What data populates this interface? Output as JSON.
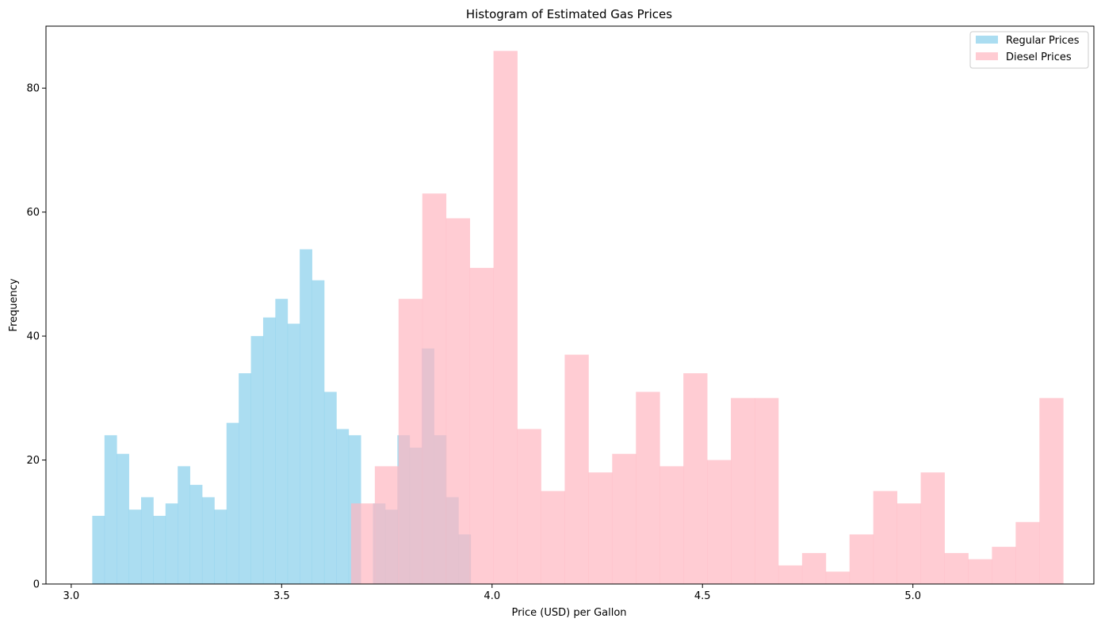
{
  "chart_data": {
    "type": "histogram",
    "title": "Histogram of Estimated Gas Prices",
    "xlabel": "Price (USD) per Gallon",
    "ylabel": "Frequency",
    "xlim": [
      2.94,
      5.43
    ],
    "ylim": [
      0,
      90
    ],
    "xticks": [
      3.0,
      3.5,
      4.0,
      4.5,
      5.0
    ],
    "xtick_labels": [
      "3.0",
      "3.5",
      "4.0",
      "4.5",
      "5.0"
    ],
    "yticks": [
      0,
      20,
      40,
      60,
      80
    ],
    "ytick_labels": [
      "0",
      "20",
      "40",
      "60",
      "80"
    ],
    "grid": false,
    "legend_position": "top-right",
    "series": [
      {
        "name": "Regular Prices",
        "color": "#87CEEB",
        "opacity": 0.7,
        "bin_start": 3.05,
        "bin_width": 0.029,
        "counts": [
          11,
          24,
          21,
          12,
          14,
          11,
          13,
          19,
          16,
          14,
          12,
          26,
          34,
          40,
          43,
          46,
          42,
          54,
          49,
          31,
          25,
          24,
          0,
          13,
          12,
          24,
          22,
          38,
          24,
          14,
          8
        ]
      },
      {
        "name": "Diesel Prices",
        "color": "#FFB6C1",
        "opacity": 0.7,
        "bin_start": 3.665,
        "bin_width": 0.0564,
        "counts": [
          13,
          19,
          46,
          63,
          59,
          51,
          86,
          25,
          15,
          37,
          18,
          21,
          31,
          19,
          34,
          20,
          30,
          30,
          3,
          5,
          2,
          8,
          15,
          13,
          18,
          5,
          4,
          6,
          10,
          30
        ]
      }
    ]
  }
}
